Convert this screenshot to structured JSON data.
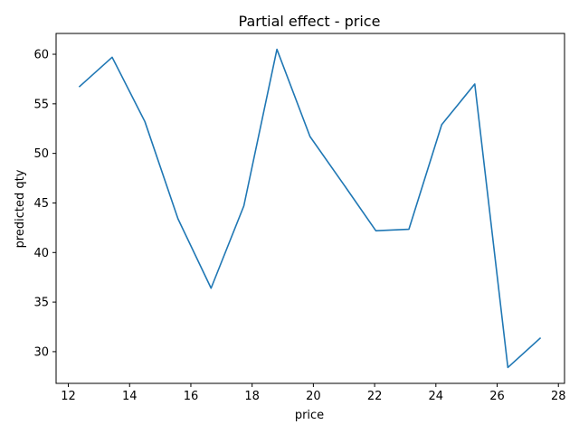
{
  "chart_data": {
    "type": "line",
    "title": "Partial effect - price",
    "xlabel": "price",
    "ylabel": "predicted qty",
    "xlim": [
      11.6,
      28.2
    ],
    "ylim": [
      26.8,
      62.1
    ],
    "xticks": [
      12,
      14,
      16,
      18,
      20,
      22,
      24,
      26,
      28
    ],
    "yticks": [
      30,
      35,
      40,
      45,
      50,
      55,
      60
    ],
    "grid": false,
    "color": "#1f77b4",
    "series": [
      {
        "x": [
          12.35,
          13.43,
          14.5,
          15.58,
          16.66,
          17.73,
          18.81,
          19.89,
          20.96,
          22.04,
          23.12,
          24.19,
          25.27,
          26.35,
          27.42
        ],
        "values": [
          56.7,
          59.7,
          53.2,
          43.4,
          36.4,
          44.7,
          60.5,
          51.7,
          47.0,
          42.2,
          42.35,
          52.9,
          57.0,
          28.4,
          31.4
        ]
      }
    ]
  }
}
